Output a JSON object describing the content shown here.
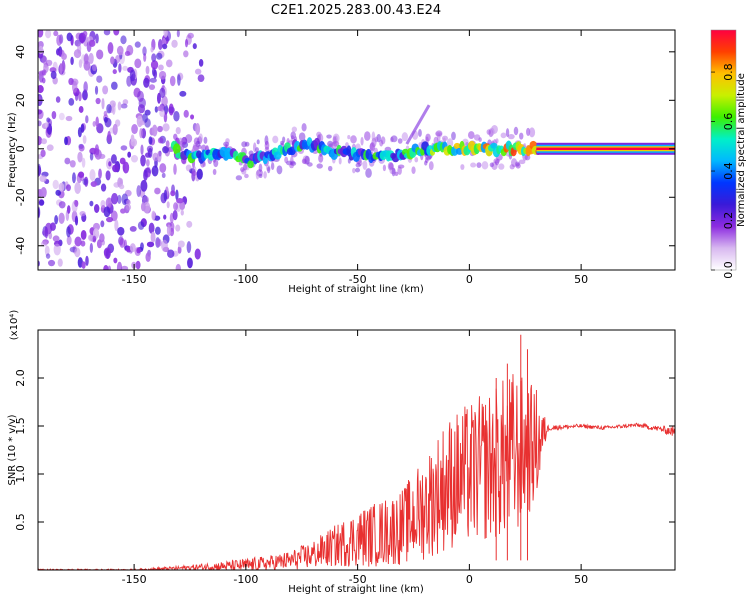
{
  "title": "C2E1.2025.283.00.43.E24",
  "chart_data": [
    {
      "type": "heatmap",
      "title": "C2E1.2025.283.00.43.E24",
      "xlabel": "Height of straight line (km)",
      "ylabel": "Frequency (Hz)",
      "xlim": [
        -193,
        92
      ],
      "ylim": [
        -50,
        49
      ],
      "xticks": [
        -150,
        -100,
        -50,
        0,
        50
      ],
      "yticks": [
        -40,
        -20,
        0,
        20,
        40
      ],
      "colorbar": {
        "label": "Normalized spectral amplitude",
        "range": [
          0.0,
          0.97
        ],
        "ticks": [
          0.0,
          0.2,
          0.4,
          0.6,
          0.8
        ],
        "colors": [
          "#ffffff",
          "#d8b8f0",
          "#8c2be0",
          "#3a1ad8",
          "#0036ff",
          "#00b8ff",
          "#00f0c8",
          "#3cf000",
          "#c8f000",
          "#ffc000",
          "#ff4000",
          "#ff0040"
        ]
      },
      "tone_track": [
        {
          "x": -130,
          "y": -2.2
        },
        {
          "x": -120,
          "y": -2.5
        },
        {
          "x": -110,
          "y": -1.0
        },
        {
          "x": -100,
          "y": -5.5
        },
        {
          "x": -90,
          "y": -3.0
        },
        {
          "x": -80,
          "y": 0.5
        },
        {
          "x": -70,
          "y": 1.5
        },
        {
          "x": -60,
          "y": -1.0
        },
        {
          "x": -50,
          "y": -2.5
        },
        {
          "x": -40,
          "y": -3.0
        },
        {
          "x": -30,
          "y": -2.5
        },
        {
          "x": -20,
          "y": 0.0
        },
        {
          "x": -10,
          "y": 0.0
        },
        {
          "x": 0,
          "y": 0.0
        },
        {
          "x": 10,
          "y": 0.0
        },
        {
          "x": 20,
          "y": 0.0
        },
        {
          "x": 30,
          "y": 0.0
        },
        {
          "x": 40,
          "y": 0.0
        },
        {
          "x": 50,
          "y": 0.0
        },
        {
          "x": 60,
          "y": 0.0
        },
        {
          "x": 70,
          "y": 0.0
        },
        {
          "x": 80,
          "y": 0.0
        },
        {
          "x": 90,
          "y": 0.0
        }
      ],
      "noise_region_x": [
        -193,
        -120
      ]
    },
    {
      "type": "line",
      "xlabel": "Height of straight line (km)",
      "ylabel": "SNR (10 * v/v)",
      "y_multiplier": "(x10⁴)",
      "xlim": [
        -193,
        92
      ],
      "ylim": [
        0,
        2.5
      ],
      "xticks": [
        -150,
        -100,
        -50,
        0,
        50
      ],
      "yticks": [
        0.5,
        1.0,
        1.5,
        2.0
      ],
      "line_color": "#e83030",
      "envelope": [
        {
          "x": -193,
          "mean": 0.0,
          "spread": 0.01
        },
        {
          "x": -150,
          "mean": 0.0,
          "spread": 0.01
        },
        {
          "x": -130,
          "mean": 0.02,
          "spread": 0.02
        },
        {
          "x": -110,
          "mean": 0.04,
          "spread": 0.05
        },
        {
          "x": -100,
          "mean": 0.05,
          "spread": 0.07
        },
        {
          "x": -90,
          "mean": 0.07,
          "spread": 0.08
        },
        {
          "x": -80,
          "mean": 0.1,
          "spread": 0.1
        },
        {
          "x": -70,
          "mean": 0.16,
          "spread": 0.15
        },
        {
          "x": -60,
          "mean": 0.25,
          "spread": 0.22
        },
        {
          "x": -50,
          "mean": 0.33,
          "spread": 0.3
        },
        {
          "x": -40,
          "mean": 0.38,
          "spread": 0.35
        },
        {
          "x": -30,
          "mean": 0.45,
          "spread": 0.4
        },
        {
          "x": -20,
          "mean": 0.65,
          "spread": 0.55
        },
        {
          "x": -10,
          "mean": 0.9,
          "spread": 0.7
        },
        {
          "x": 0,
          "mean": 1.0,
          "spread": 0.75
        },
        {
          "x": 10,
          "mean": 1.1,
          "spread": 0.8
        },
        {
          "x": 20,
          "mean": 1.2,
          "spread": 0.9
        },
        {
          "x": 30,
          "mean": 1.3,
          "spread": 0.6
        },
        {
          "x": 35,
          "mean": 1.48,
          "spread": 0.03
        },
        {
          "x": 50,
          "mean": 1.5,
          "spread": 0.02
        },
        {
          "x": 60,
          "mean": 1.48,
          "spread": 0.02
        },
        {
          "x": 75,
          "mean": 1.51,
          "spread": 0.02
        },
        {
          "x": 85,
          "mean": 1.47,
          "spread": 0.03
        },
        {
          "x": 92,
          "mean": 1.44,
          "spread": 0.06
        }
      ],
      "peak_values": [
        {
          "x": 23,
          "y": 2.45
        },
        {
          "x": 26,
          "y": 2.3
        },
        {
          "x": 12,
          "y": 2.0
        },
        {
          "x": 17,
          "y": 2.15
        }
      ]
    }
  ]
}
